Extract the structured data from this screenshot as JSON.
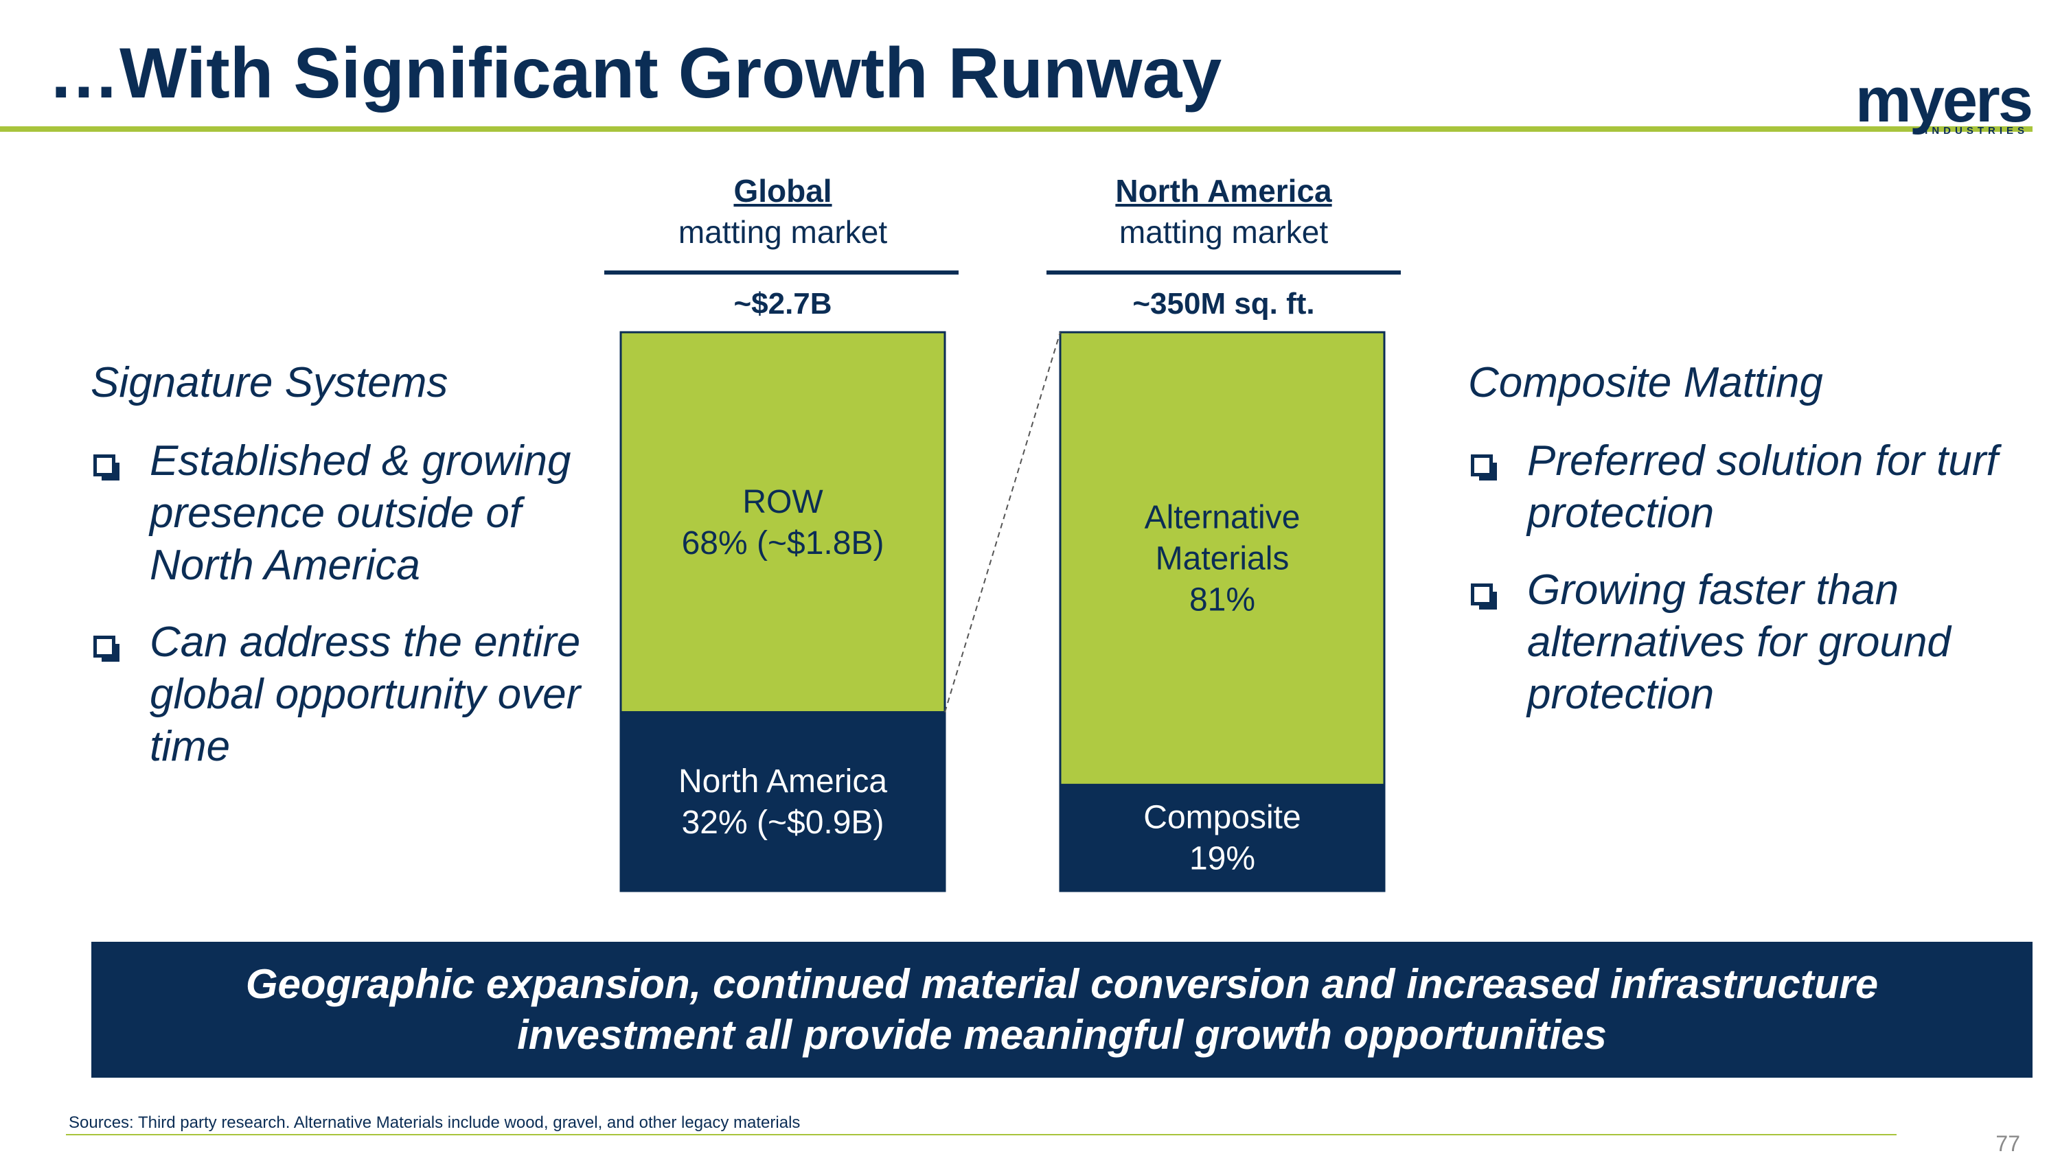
{
  "title": "…With Significant Growth Runway",
  "logo": {
    "word": "myers",
    "sub": "INDUSTRIES"
  },
  "colors": {
    "navy": "#0b2d55",
    "green": "#afca42",
    "rule_green": "#a8c43c"
  },
  "columns": [
    {
      "heading": "Global",
      "subheading": "matting market",
      "total": "~$2.7B"
    },
    {
      "heading": "North America",
      "subheading": "matting market",
      "total": "~350M sq. ft."
    }
  ],
  "left_panel": {
    "title": "Signature Systems",
    "bullets": [
      "Established & growing presence outside of North America",
      "Can address the entire global opportunity over time"
    ]
  },
  "right_panel": {
    "title": "Composite Matting",
    "bullets": [
      "Preferred solution for turf protection",
      "Growing faster than alternatives for ground protection"
    ]
  },
  "banner": {
    "line1": "Geographic expansion, continued material conversion and increased infrastructure",
    "line2": "investment all provide meaningful growth opportunities"
  },
  "footnote": "Sources: Third party research. Alternative Materials include wood, gravel, and other legacy materials",
  "page_number": "77",
  "chart_data": {
    "type": "bar",
    "stacked": true,
    "percent": true,
    "categories": [
      "Global matting market",
      "North America matting market"
    ],
    "series": [
      {
        "name": "bottom",
        "color": "#0b2d55",
        "values": [
          32,
          19
        ],
        "labels": [
          [
            "North America",
            "32% (~$0.9B)"
          ],
          [
            "Composite",
            "19%"
          ]
        ]
      },
      {
        "name": "top",
        "color": "#afca42",
        "values": [
          68,
          81
        ],
        "labels": [
          [
            "ROW",
            "68% (~$1.8B)"
          ],
          [
            "Alternative",
            "Materials",
            "81%"
          ]
        ]
      }
    ],
    "totals": [
      "~$2.7B",
      "~350M sq. ft."
    ],
    "ylim": [
      0,
      100
    ],
    "connector": "North America share of Global expands into the North America bar"
  }
}
